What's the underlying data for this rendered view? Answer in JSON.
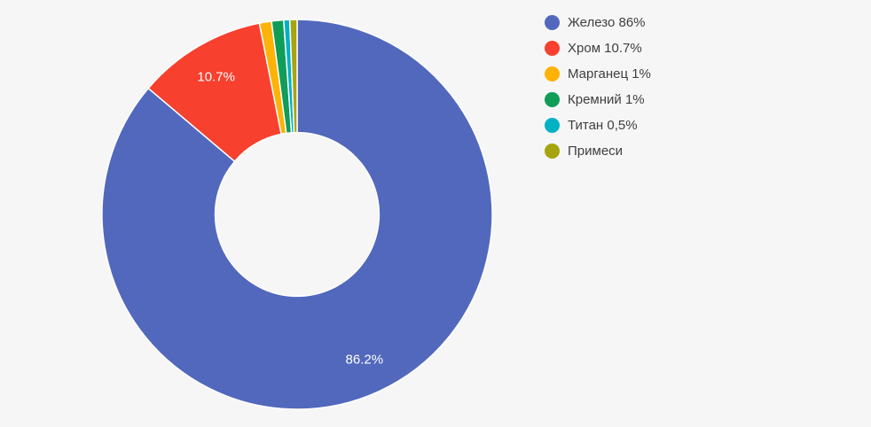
{
  "chart_data": {
    "type": "pie",
    "subtype": "donut",
    "title": "",
    "legend_position": "right",
    "background_color": "#f6f6f6",
    "separator_color": "#ffffff",
    "pie_hole_ratio": 0.42,
    "start_angle": "12 o'clock, clockwise",
    "slices": [
      {
        "label": "Железо",
        "legend_label": "Железо 86%",
        "value": 86.2,
        "slice_label": "86.2%",
        "color": "#5268bd"
      },
      {
        "label": "Хром",
        "legend_label": "Хром 10.7%",
        "value": 10.7,
        "slice_label": "10.7%",
        "color": "#f7402e"
      },
      {
        "label": "Марганец",
        "legend_label": "Марганец 1%",
        "value": 1.0,
        "slice_label": "",
        "color": "#fcb207"
      },
      {
        "label": "Кремний",
        "legend_label": "Кремний 1%",
        "value": 1.0,
        "slice_label": "",
        "color": "#0f9d58"
      },
      {
        "label": "Титан",
        "legend_label": "Титан 0,5%",
        "value": 0.5,
        "slice_label": "",
        "color": "#00b1c4"
      },
      {
        "label": "Примеси",
        "legend_label": "Примеси",
        "value": 0.6,
        "slice_label": "",
        "color": "#a6a40f"
      }
    ]
  }
}
